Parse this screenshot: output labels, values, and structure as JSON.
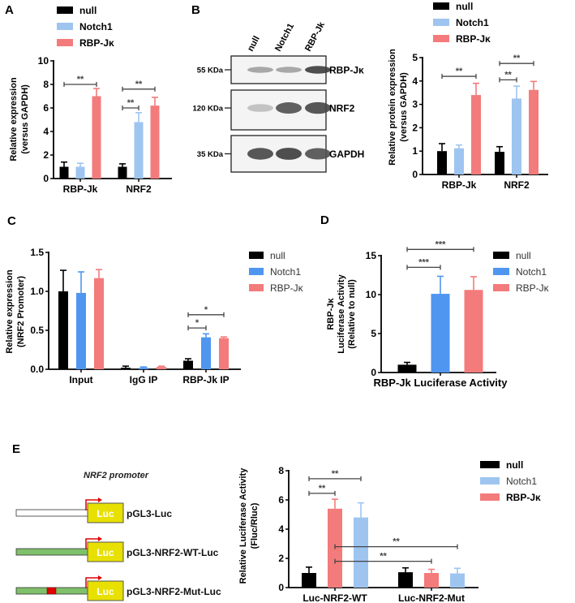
{
  "colors": {
    "null": "#000000",
    "notch_light": "#9ec5f0",
    "notch_blue": "#4f96f0",
    "rbp": "#f47b7b",
    "sig": "#444444",
    "luc_fill": "#e8e000",
    "promoter_green": "#7fc06a",
    "mutation_red": "#e00000",
    "arrow_red": "#e00000"
  },
  "panel_labels": {
    "a": "A",
    "b": "B",
    "c": "C",
    "d": "D",
    "e": "E"
  },
  "chart_data": [
    {
      "id": "A",
      "type": "bar",
      "title": "",
      "ylabel": [
        "Relative expression",
        "(versus GAPDH)"
      ],
      "xlabel": "",
      "ylim": [
        0,
        10
      ],
      "yticks": [
        "0",
        "2",
        "4",
        "6",
        "8",
        "10"
      ],
      "categories": [
        "RBP-Jk",
        "NRF2"
      ],
      "legend": [
        "null",
        "Notch1",
        "RBP-Jκ"
      ],
      "legend_position": "top-left",
      "series": [
        {
          "name": "null",
          "values": [
            1.0,
            1.0
          ],
          "errors": [
            0.4,
            0.25
          ]
        },
        {
          "name": "Notch1",
          "values": [
            1.0,
            4.8
          ],
          "errors": [
            0.3,
            0.8
          ]
        },
        {
          "name": "RBP-Jκ",
          "values": [
            7.0,
            6.2
          ],
          "errors": [
            0.65,
            0.7
          ]
        }
      ],
      "significance": [
        {
          "label": "**",
          "category": 0,
          "from": 0,
          "to": 2,
          "level": 8.0
        },
        {
          "label": "**",
          "category": 1,
          "from": 0,
          "to": 1,
          "level": 6.0
        },
        {
          "label": "**",
          "category": 1,
          "from": 0,
          "to": 2,
          "level": 7.6
        }
      ]
    },
    {
      "id": "B",
      "type": "bar",
      "title": "",
      "ylabel": [
        "Relative protein expression",
        "(versus GAPDH)"
      ],
      "xlabel": "",
      "ylim": [
        0,
        5
      ],
      "yticks": [
        "0",
        "1",
        "2",
        "3",
        "4",
        "5"
      ],
      "categories": [
        "RBP-Jk",
        "NRF2"
      ],
      "legend": [
        "null",
        "Notch1",
        "RBP-Jκ"
      ],
      "legend_position": "top",
      "series": [
        {
          "name": "null",
          "values": [
            1.0,
            0.97
          ],
          "errors": [
            0.32,
            0.22
          ]
        },
        {
          "name": "Notch1",
          "values": [
            1.12,
            3.25
          ],
          "errors": [
            0.14,
            0.53
          ]
        },
        {
          "name": "RBP-Jκ",
          "values": [
            3.4,
            3.62
          ],
          "errors": [
            0.5,
            0.36
          ]
        }
      ],
      "significance": [
        {
          "label": "**",
          "category": 0,
          "from": 0,
          "to": 2,
          "level": 4.2
        },
        {
          "label": "**",
          "category": 1,
          "from": 0,
          "to": 1,
          "level": 4.05
        },
        {
          "label": "**",
          "category": 1,
          "from": 0,
          "to": 2,
          "level": 4.75
        }
      ]
    },
    {
      "id": "C",
      "type": "bar",
      "title": "",
      "ylabel": [
        "Relative expression",
        "(NRF2 Promoter)"
      ],
      "xlabel": "",
      "ylim": [
        0,
        1.5
      ],
      "yticks": [
        "0.0",
        "0.5",
        "1.0",
        "1.5"
      ],
      "categories": [
        "Input",
        "IgG IP",
        "RBP-Jk IP"
      ],
      "legend": [
        "null",
        "Notch1",
        "RBP-Jκ"
      ],
      "legend_position": "right",
      "series": [
        {
          "name": "null",
          "values": [
            1.0,
            0.02,
            0.11
          ],
          "errors": [
            0.27,
            0.02,
            0.025
          ]
        },
        {
          "name": "Notch1",
          "values": [
            0.98,
            0.02,
            0.41
          ],
          "errors": [
            0.27,
            0.01,
            0.045
          ]
        },
        {
          "name": "RBP-Jκ",
          "values": [
            1.17,
            0.03,
            0.4
          ],
          "errors": [
            0.11,
            0.01,
            0.015
          ]
        }
      ],
      "significance": [
        {
          "label": "*",
          "category": 2,
          "from": 0,
          "to": 1,
          "level": 0.53
        },
        {
          "label": "*",
          "category": 2,
          "from": 0,
          "to": 2,
          "level": 0.7
        }
      ]
    },
    {
      "id": "D",
      "type": "bar",
      "title": "",
      "ylabel": [
        "RBP-Jκ",
        "Luciferase Activity",
        "(Relative to null)"
      ],
      "xlabel": "",
      "ylim": [
        0,
        15
      ],
      "yticks": [
        "0",
        "5",
        "10",
        "15"
      ],
      "categories": [
        "RBP-Jk Luciferase Activity"
      ],
      "legend": [
        "null",
        "Notch1",
        "RBP-Jκ"
      ],
      "legend_position": "right",
      "series": [
        {
          "name": "null",
          "values": [
            1.0
          ],
          "errors": [
            0.3
          ]
        },
        {
          "name": "Notch1",
          "values": [
            10.1
          ],
          "errors": [
            2.25
          ]
        },
        {
          "name": "RBP-Jκ",
          "values": [
            10.6
          ],
          "errors": [
            1.7
          ]
        }
      ],
      "significance": [
        {
          "label": "***",
          "category": 0,
          "from": 0,
          "to": 1,
          "level": 13.5
        },
        {
          "label": "***",
          "category": 0,
          "from": 0,
          "to": 2,
          "level": 15.8
        }
      ]
    },
    {
      "id": "E",
      "type": "bar",
      "title": "",
      "ylabel": [
        "Relative Luciferase Activity",
        "(Fluc/Rluc)"
      ],
      "xlabel": "",
      "ylim": [
        0,
        8
      ],
      "yticks": [
        "0",
        "2",
        "4",
        "6",
        "8"
      ],
      "categories": [
        "Luc-NRF2-WT",
        "Luc-NRF2-Mut"
      ],
      "legend": [
        "null",
        "Notch1",
        "RBP-Jκ"
      ],
      "legend_position": "right",
      "series_order": [
        "null",
        "RBP-Jκ",
        "Notch1"
      ],
      "series": [
        {
          "name": "null",
          "values": [
            1.0,
            1.05
          ],
          "errors": [
            0.4,
            0.3
          ]
        },
        {
          "name": "RBP-Jκ",
          "values": [
            5.4,
            1.0
          ],
          "errors": [
            0.65,
            0.25
          ]
        },
        {
          "name": "Notch1",
          "values": [
            4.8,
            0.97
          ],
          "errors": [
            1.0,
            0.35
          ]
        }
      ],
      "significance": [
        {
          "label": "**",
          "from": [
            0,
            0
          ],
          "to": [
            0,
            1
          ],
          "level": 6.45
        },
        {
          "label": "**",
          "from": [
            0,
            0
          ],
          "to": [
            0,
            2
          ],
          "level": 7.45
        },
        {
          "label": "**",
          "from": [
            0,
            1
          ],
          "to": [
            1,
            1
          ],
          "level": 1.8
        },
        {
          "label": "**",
          "from": [
            0,
            1
          ],
          "to": [
            1,
            2
          ],
          "level": 2.8
        }
      ]
    }
  ],
  "western": {
    "lanes": [
      "null",
      "Notch1",
      "RBP-Jk"
    ],
    "rows": [
      {
        "marker": "55 KDa",
        "protein": "RBP-Jκ",
        "intensity": [
          0.35,
          0.35,
          0.85
        ]
      },
      {
        "marker": "120 KDa",
        "protein": "NRF2",
        "intensity": [
          0.2,
          0.75,
          0.8
        ]
      },
      {
        "marker": "35 KDa",
        "protein": "GAPDH",
        "intensity": [
          0.8,
          0.85,
          0.75
        ]
      }
    ]
  },
  "diagram": {
    "title": "NRF2 promoter",
    "luc_label": "Luc",
    "constructs": [
      {
        "name": "pGL3-Luc",
        "promoter": "empty",
        "mutation": false
      },
      {
        "name": "pGL3-NRF2-WT-Luc",
        "promoter": "green",
        "mutation": false
      },
      {
        "name": "pGL3-NRF2-Mut-Luc",
        "promoter": "green",
        "mutation": true
      }
    ]
  }
}
